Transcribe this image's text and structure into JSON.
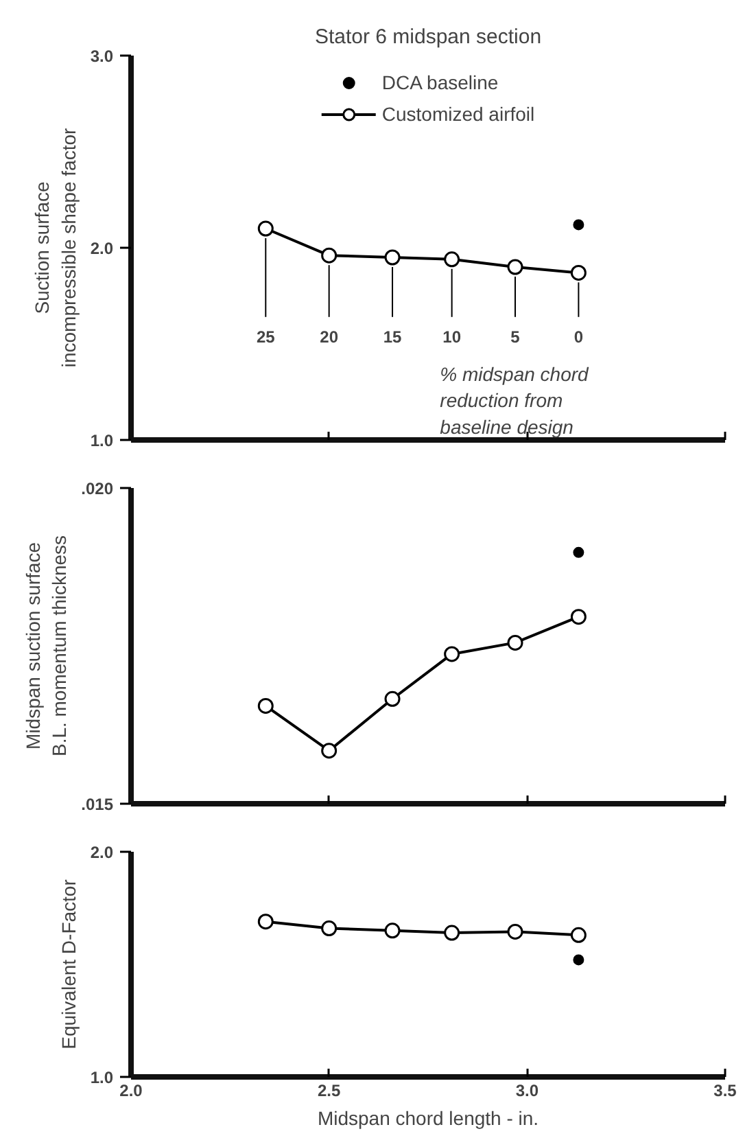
{
  "chart_data": [
    {
      "type": "line",
      "title": "Stator 6 midspan section",
      "ylabel": "Suction surface\nincompressible shape factor",
      "xlim": [
        2.0,
        3.5
      ],
      "xticks": [
        {
          "value": 2.0,
          "label": null
        },
        {
          "value": 2.5,
          "label": null
        },
        {
          "value": 3.0,
          "label": null
        },
        {
          "value": 3.5,
          "label": null
        }
      ],
      "ylim": [
        1.0,
        3.0
      ],
      "yticks": [
        {
          "value": 1,
          "label": "1.0"
        },
        {
          "value": 2,
          "label": "2.0"
        },
        {
          "value": 3,
          "label": "3.0"
        }
      ],
      "tick_labels": "y",
      "legend": "top",
      "grid": false,
      "series": [
        {
          "name": "DCA baseline",
          "type": "scatter",
          "marker": "circle",
          "color": "#000000",
          "x": [
            3.13
          ],
          "values": [
            2.12
          ]
        },
        {
          "name": "Customized airfoil",
          "marker": "circle",
          "color": "#000000",
          "x": [
            2.34,
            2.5,
            2.66,
            2.81,
            2.97,
            3.13
          ],
          "values": [
            2.1,
            1.96,
            1.95,
            1.94,
            1.9,
            1.87
          ]
        }
      ],
      "annotations": [
        {
          "text": "25",
          "x": 2.34,
          "y": 2.1
        },
        {
          "text": "20",
          "x": 2.5,
          "y": 1.96
        },
        {
          "text": "15",
          "x": 2.66,
          "y": 1.95
        },
        {
          "text": "10",
          "x": 2.81,
          "y": 1.94
        },
        {
          "text": "5",
          "x": 2.97,
          "y": 1.9
        },
        {
          "text": "0",
          "x": 3.13,
          "y": 1.87
        },
        "% midspan chord\nreduction from\nbaseline design"
      ]
    },
    {
      "type": "line",
      "ylabel": "Midspan suction surface\nB.L. momentum thickness",
      "xlim": [
        2.0,
        3.5
      ],
      "xticks": [
        {
          "value": 2.0,
          "label": null
        },
        {
          "value": 2.5,
          "label": null
        },
        {
          "value": 3.0,
          "label": null
        },
        {
          "value": 3.5,
          "label": null
        }
      ],
      "ylim": [
        0.015,
        0.02
      ],
      "yticks": [
        {
          "value": 0.015,
          "label": ".015"
        },
        {
          "value": 0.02,
          "label": ".020"
        }
      ],
      "tick_labels": "y",
      "grid": false,
      "series": [
        {
          "type": "scatter",
          "marker": "circle",
          "color": "#000000",
          "x": [
            3.13
          ],
          "values": [
            0.01898
          ]
        },
        {
          "marker": "circle",
          "color": "#000000",
          "x": [
            2.34,
            2.5,
            2.66,
            2.81,
            2.97,
            3.13
          ],
          "values": [
            0.01655,
            0.01584,
            0.01666,
            0.01737,
            0.01755,
            0.01796
          ]
        }
      ]
    },
    {
      "type": "line",
      "xlabel": "Midspan chord length - in.",
      "ylabel": "Equivalent D-Factor",
      "xlim": [
        2.0,
        3.5
      ],
      "xticks": [
        {
          "value": 2.0,
          "label": "2.0"
        },
        {
          "value": 2.5,
          "label": "2.5"
        },
        {
          "value": 3.0,
          "label": "3.0"
        },
        {
          "value": 3.5,
          "label": "3.5"
        }
      ],
      "ylim": [
        1.0,
        2.0
      ],
      "yticks": [
        {
          "value": 1,
          "label": "1.0"
        },
        {
          "value": 2,
          "label": "2.0"
        }
      ],
      "grid": false,
      "series": [
        {
          "type": "scatter",
          "marker": "circle",
          "color": "#000000",
          "x": [
            3.13
          ],
          "values": [
            1.52
          ]
        },
        {
          "marker": "circle",
          "color": "#000000",
          "x": [
            2.34,
            2.5,
            2.66,
            2.81,
            2.97,
            3.13
          ],
          "values": [
            1.69,
            1.66,
            1.65,
            1.64,
            1.645,
            1.63
          ]
        }
      ]
    }
  ]
}
